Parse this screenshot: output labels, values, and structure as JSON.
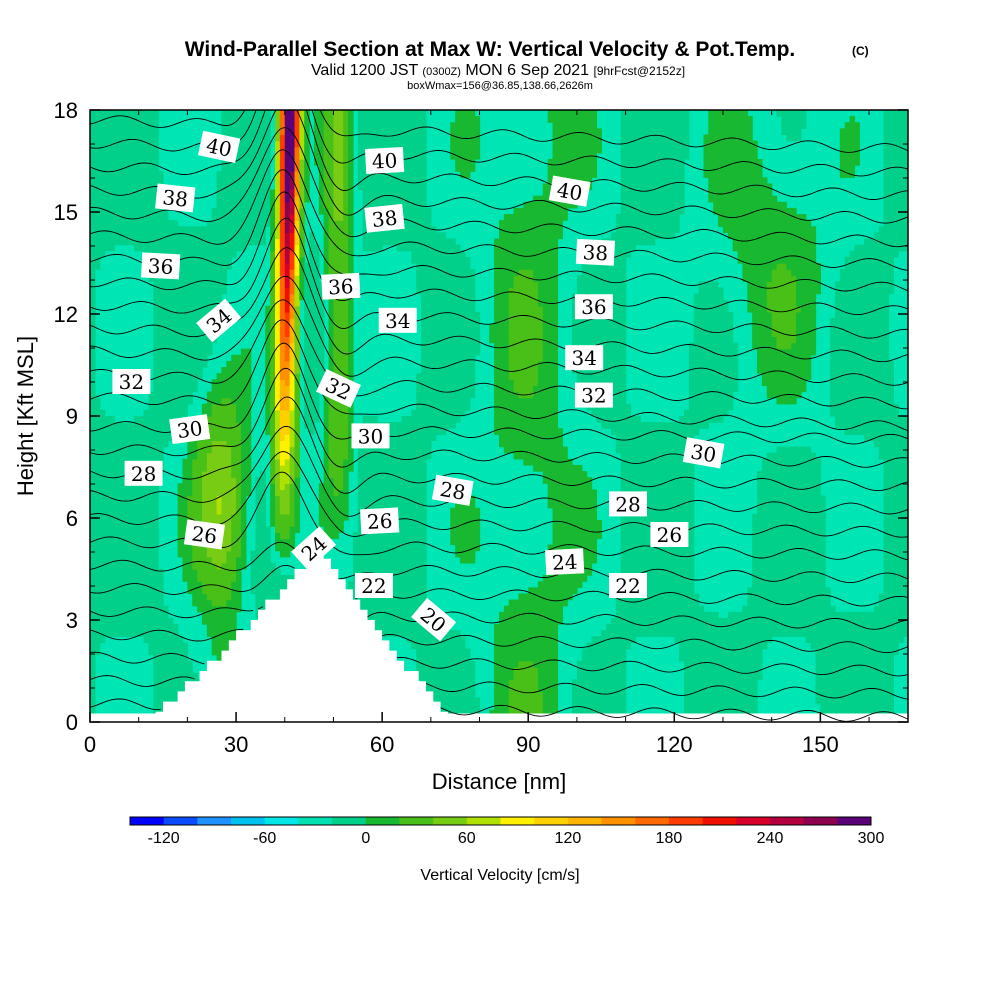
{
  "chart_data": {
    "type": "contour",
    "title_main": "Wind-Parallel Section at Max W: Vertical Velocity & Pot.Temp.",
    "title_mark": "(C)",
    "subtitle": {
      "valid": "Valid 1200 JST",
      "utc": "(0300Z)",
      "date": "MON 6 Sep 2021",
      "fcst": "[9hrFcst@2152z]"
    },
    "box_info": "boxWmax=156@36.85,138.66,2626m",
    "xlabel": "Distance [nm]",
    "ylabel": "Height [Kft MSL]",
    "xlim": [
      0,
      168
    ],
    "ylim": [
      0,
      18
    ],
    "xticks": [
      "0",
      "30",
      "60",
      "90",
      "120",
      "150"
    ],
    "yticks": [
      "0",
      "3",
      "6",
      "9",
      "12",
      "15",
      "18"
    ],
    "colorbar": {
      "label": "Vertical Velocity [cm/s]",
      "min": -140,
      "max": 340,
      "step": 20,
      "tick_values": [
        -120,
        -60,
        0,
        60,
        120,
        180,
        240,
        300
      ],
      "tick_labels": [
        "-120",
        "-60",
        "0",
        "60",
        "120",
        "180",
        "240",
        "300"
      ],
      "colors": [
        "#0000ff",
        "#0a4bff",
        "#1e90ff",
        "#00c0f0",
        "#00e5e5",
        "#00e0b0",
        "#00d08a",
        "#18b830",
        "#48c018",
        "#78cc14",
        "#b0e000",
        "#fff000",
        "#ffd000",
        "#ffb400",
        "#ff9000",
        "#ff6a00",
        "#ff3c00",
        "#f01000",
        "#d8002a",
        "#b4003e",
        "#8c004e",
        "#5a0078"
      ]
    },
    "theta_contours": {
      "levels": [
        18,
        19,
        20,
        21,
        22,
        23,
        24,
        25,
        26,
        27,
        28,
        29,
        30,
        31,
        32,
        33,
        34,
        35,
        36,
        37,
        38,
        39,
        40,
        41,
        42,
        43
      ],
      "labels": [
        {
          "text": "40",
          "x": 26.5,
          "y": 16.9,
          "rot": 12
        },
        {
          "text": "40",
          "x": 60.5,
          "y": 16.5,
          "rot": -3
        },
        {
          "text": "40",
          "x": 98.5,
          "y": 15.6,
          "rot": 10
        },
        {
          "text": "38",
          "x": 17.5,
          "y": 15.4,
          "rot": 6
        },
        {
          "text": "38",
          "x": 60.5,
          "y": 14.8,
          "rot": -6
        },
        {
          "text": "38",
          "x": 103.8,
          "y": 13.8,
          "rot": 3
        },
        {
          "text": "36",
          "x": 14.5,
          "y": 13.4,
          "rot": 3
        },
        {
          "text": "36",
          "x": 51.5,
          "y": 12.8,
          "rot": -3
        },
        {
          "text": "36",
          "x": 103.5,
          "y": 12.2,
          "rot": 0
        },
        {
          "text": "34",
          "x": 26.5,
          "y": 11.8,
          "rot": -40
        },
        {
          "text": "34",
          "x": 63.2,
          "y": 11.8,
          "rot": 0
        },
        {
          "text": "34",
          "x": 101.5,
          "y": 10.7,
          "rot": 0
        },
        {
          "text": "32",
          "x": 8.5,
          "y": 10.0,
          "rot": 0
        },
        {
          "text": "32",
          "x": 51.0,
          "y": 9.8,
          "rot": 25
        },
        {
          "text": "32",
          "x": 103.5,
          "y": 9.6,
          "rot": 0
        },
        {
          "text": "30",
          "x": 20.5,
          "y": 8.6,
          "rot": -8
        },
        {
          "text": "30",
          "x": 57.6,
          "y": 8.4,
          "rot": 0
        },
        {
          "text": "30",
          "x": 126.0,
          "y": 7.9,
          "rot": 10
        },
        {
          "text": "28",
          "x": 11.0,
          "y": 7.3,
          "rot": 0
        },
        {
          "text": "28",
          "x": 74.5,
          "y": 6.8,
          "rot": 10
        },
        {
          "text": "28",
          "x": 110.5,
          "y": 6.4,
          "rot": 0
        },
        {
          "text": "26",
          "x": 23.5,
          "y": 5.5,
          "rot": 8
        },
        {
          "text": "26",
          "x": 59.5,
          "y": 5.9,
          "rot": -3
        },
        {
          "text": "26",
          "x": 119.0,
          "y": 5.5,
          "rot": 0
        },
        {
          "text": "24",
          "x": 46.0,
          "y": 5.1,
          "rot": -42
        },
        {
          "text": "24",
          "x": 97.5,
          "y": 4.7,
          "rot": -3
        },
        {
          "text": "22",
          "x": 58.3,
          "y": 4.0,
          "rot": 0
        },
        {
          "text": "22",
          "x": 110.5,
          "y": 4.0,
          "rot": 0
        },
        {
          "text": "20",
          "x": 70.5,
          "y": 3.0,
          "rot": 40
        }
      ]
    },
    "terrain_peak": {
      "x": 46,
      "y": 5.2
    },
    "wmax_column": {
      "x": 40,
      "top_value": 330
    }
  }
}
